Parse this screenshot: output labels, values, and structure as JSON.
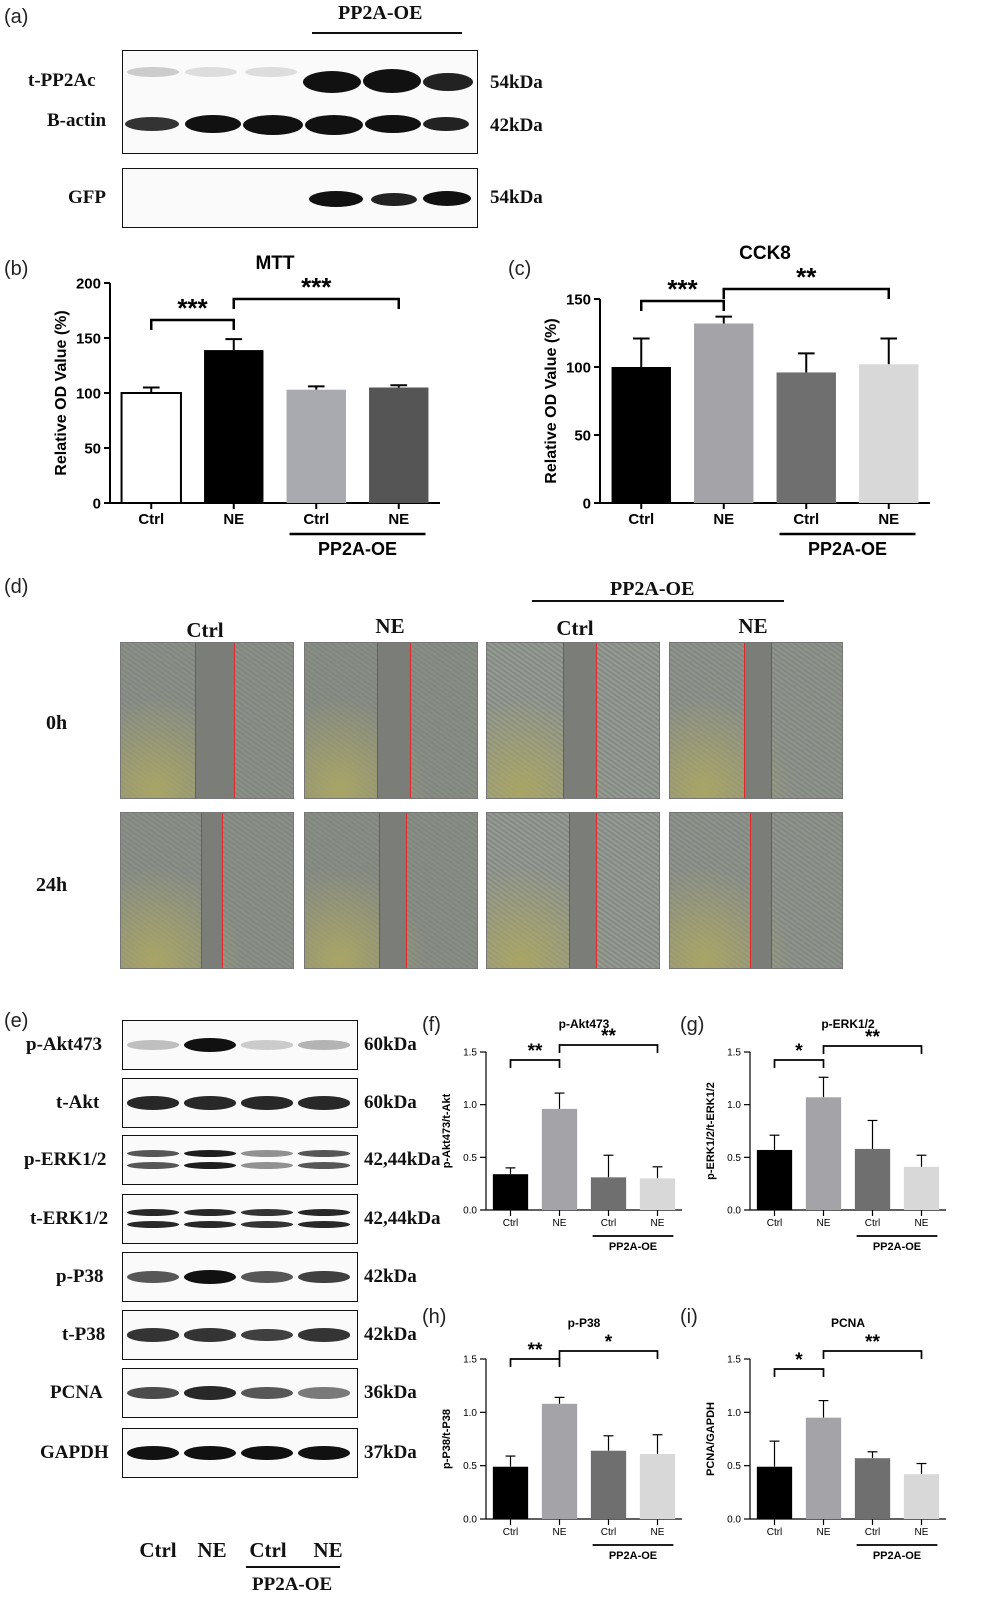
{
  "panel_letters": [
    "(a)",
    "(b)",
    "(c)",
    "(d)",
    "(e)",
    "(f)",
    "(g)",
    "(h)",
    "(i)"
  ],
  "blot_a": {
    "header": "PP2A-OE",
    "rows": [
      {
        "label": "t-PP2Ac",
        "kda": "54kDa"
      },
      {
        "label": "B-actin",
        "kda": "42kDa"
      },
      {
        "label": "GFP",
        "kda": "54kDa"
      }
    ]
  },
  "wound": {
    "header": "PP2A-OE",
    "cols": [
      "Ctrl",
      "NE",
      "Ctrl",
      "NE"
    ],
    "rows": [
      "0h",
      "24h"
    ]
  },
  "blot_e": {
    "rows": [
      {
        "label": "p-Akt473",
        "kda": "60kDa"
      },
      {
        "label": "t-Akt",
        "kda": "60kDa"
      },
      {
        "label": "p-ERK1/2",
        "kda": "42,44kDa"
      },
      {
        "label": "t-ERK1/2",
        "kda": "42,44kDa"
      },
      {
        "label": "p-P38",
        "kda": "42kDa"
      },
      {
        "label": "t-P38",
        "kda": "42kDa"
      },
      {
        "label": "PCNA",
        "kda": "36kDa"
      },
      {
        "label": "GAPDH",
        "kda": "37kDa"
      }
    ],
    "cols": [
      "Ctrl",
      "NE",
      "Ctrl",
      "NE"
    ],
    "footer": "PP2A-OE"
  },
  "chart_data": [
    {
      "id": "b",
      "type": "bar",
      "title": "MTT",
      "ylabel": "Relative OD Value (%)",
      "ylim": [
        0,
        200
      ],
      "yticks": [
        0,
        50,
        100,
        150,
        200
      ],
      "categories": [
        "Ctrl",
        "NE",
        "Ctrl",
        "NE"
      ],
      "values": [
        100,
        139,
        103,
        105
      ],
      "errors": [
        5,
        10,
        3,
        2
      ],
      "colors": [
        "#ffffff",
        "#000000",
        "#a9a9b0",
        "#555555"
      ],
      "group_label": "PP2A-OE",
      "sig": [
        {
          "from": 0,
          "to": 1,
          "label": "***"
        },
        {
          "from": 1,
          "to": 3,
          "label": "***"
        }
      ]
    },
    {
      "id": "c",
      "type": "bar",
      "title": "CCK8",
      "ylabel": "Relative OD Value (%)",
      "ylim": [
        0,
        150
      ],
      "yticks": [
        0,
        50,
        100,
        150
      ],
      "categories": [
        "Ctrl",
        "NE",
        "Ctrl",
        "NE"
      ],
      "values": [
        100,
        132,
        96,
        102
      ],
      "errors": [
        21,
        5,
        14,
        19
      ],
      "colors": [
        "#000000",
        "#a3a3a8",
        "#6f6f6f",
        "#d8d8d8"
      ],
      "group_label": "PP2A-OE",
      "sig": [
        {
          "from": 0,
          "to": 1,
          "label": "***"
        },
        {
          "from": 1,
          "to": 3,
          "label": "**"
        }
      ]
    },
    {
      "id": "f",
      "type": "bar",
      "title": "p-Akt473",
      "ylabel": "p-Akt473/t-Akt",
      "ylim": [
        0,
        1.5
      ],
      "yticks": [
        0.0,
        0.5,
        1.0,
        1.5
      ],
      "categories": [
        "Ctrl",
        "NE",
        "Ctrl",
        "NE"
      ],
      "values": [
        0.34,
        0.96,
        0.31,
        0.3
      ],
      "errors": [
        0.06,
        0.15,
        0.21,
        0.11
      ],
      "colors": [
        "#000000",
        "#a3a3a8",
        "#6f6f6f",
        "#d8d8d8"
      ],
      "group_label": "PP2A-OE",
      "sig": [
        {
          "from": 0,
          "to": 1,
          "label": "**"
        },
        {
          "from": 1,
          "to": 3,
          "label": "**"
        }
      ]
    },
    {
      "id": "g",
      "type": "bar",
      "title": "p-ERK1/2",
      "ylabel": "p-ERK1/2/t-ERK1/2",
      "ylim": [
        0,
        1.5
      ],
      "yticks": [
        0.0,
        0.5,
        1.0,
        1.5
      ],
      "categories": [
        "Ctrl",
        "NE",
        "Ctrl",
        "NE"
      ],
      "values": [
        0.57,
        1.07,
        0.58,
        0.41
      ],
      "errors": [
        0.14,
        0.19,
        0.27,
        0.11
      ],
      "colors": [
        "#000000",
        "#a3a3a8",
        "#6f6f6f",
        "#d8d8d8"
      ],
      "group_label": "PP2A-OE",
      "sig": [
        {
          "from": 0,
          "to": 1,
          "label": "*"
        },
        {
          "from": 1,
          "to": 3,
          "label": "**"
        }
      ]
    },
    {
      "id": "h",
      "type": "bar",
      "title": "p-P38",
      "ylabel": "p-P38/t-P38",
      "ylim": [
        0,
        1.5
      ],
      "yticks": [
        0.0,
        0.5,
        1.0,
        1.5
      ],
      "categories": [
        "Ctrl",
        "NE",
        "Ctrl",
        "NE"
      ],
      "values": [
        0.49,
        1.08,
        0.64,
        0.61
      ],
      "errors": [
        0.1,
        0.06,
        0.14,
        0.18
      ],
      "colors": [
        "#000000",
        "#a3a3a8",
        "#6f6f6f",
        "#d8d8d8"
      ],
      "group_label": "PP2A-OE",
      "sig": [
        {
          "from": 0,
          "to": 1,
          "label": "**"
        },
        {
          "from": 1,
          "to": 3,
          "label": "*"
        }
      ]
    },
    {
      "id": "i",
      "type": "bar",
      "title": "PCNA",
      "ylabel": "PCNA/GAPDH",
      "ylim": [
        0,
        1.5
      ],
      "yticks": [
        0.0,
        0.5,
        1.0,
        1.5
      ],
      "categories": [
        "Ctrl",
        "NE",
        "Ctrl",
        "NE"
      ],
      "values": [
        0.49,
        0.95,
        0.57,
        0.42
      ],
      "errors": [
        0.24,
        0.16,
        0.06,
        0.1
      ],
      "colors": [
        "#000000",
        "#a3a3a8",
        "#6f6f6f",
        "#d8d8d8"
      ],
      "group_label": "PP2A-OE",
      "sig": [
        {
          "from": 0,
          "to": 1,
          "label": "*"
        },
        {
          "from": 1,
          "to": 3,
          "label": "**"
        }
      ]
    }
  ]
}
